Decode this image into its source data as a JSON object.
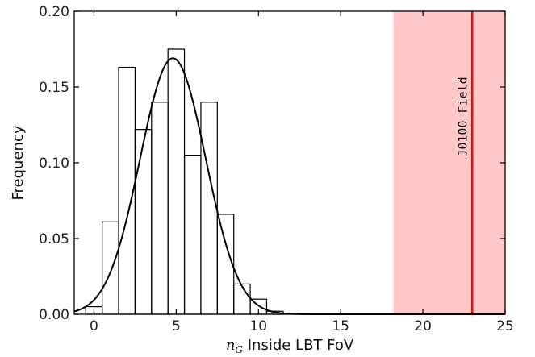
{
  "chart_data": {
    "type": "histogram",
    "xlabel_math": "n",
    "xlabel_sub": "G",
    "xlabel_text": " Inside LBT FoV",
    "ylabel": "Frequency",
    "xlim": [
      -1.2,
      25
    ],
    "ylim": [
      0,
      0.2
    ],
    "xticks": [
      0,
      5,
      10,
      15,
      20,
      25
    ],
    "yticks": [
      0.0,
      0.05,
      0.1,
      0.15,
      0.2
    ],
    "ytick_labels": [
      "0.00",
      "0.05",
      "0.10",
      "0.15",
      "0.20"
    ],
    "bins": [
      {
        "x0": -0.5,
        "x1": 0.5,
        "y": 0.005
      },
      {
        "x0": 0.5,
        "x1": 1.5,
        "y": 0.061
      },
      {
        "x0": 1.5,
        "x1": 2.5,
        "y": 0.163
      },
      {
        "x0": 2.5,
        "x1": 3.5,
        "y": 0.122
      },
      {
        "x0": 3.5,
        "x1": 4.5,
        "y": 0.14
      },
      {
        "x0": 4.5,
        "x1": 5.5,
        "y": 0.175
      },
      {
        "x0": 5.5,
        "x1": 6.5,
        "y": 0.105
      },
      {
        "x0": 6.5,
        "x1": 7.5,
        "y": 0.14
      },
      {
        "x0": 7.5,
        "x1": 8.5,
        "y": 0.066
      },
      {
        "x0": 8.5,
        "x1": 9.5,
        "y": 0.02
      },
      {
        "x0": 9.5,
        "x1": 10.5,
        "y": 0.01
      },
      {
        "x0": 10.5,
        "x1": 11.5,
        "y": 0.002
      }
    ],
    "fit": {
      "type": "gaussian",
      "amplitude": 0.169,
      "mean": 4.8,
      "sigma": 2.0
    },
    "shaded_region": {
      "x0": 18.2,
      "x1": 25,
      "color": "#ffc9c9"
    },
    "vline": {
      "x": 23,
      "color": "#e01010",
      "label": "J0100 Field"
    },
    "colors": {
      "hist": "#000000",
      "fit": "#000000",
      "axes": "#000000"
    }
  }
}
